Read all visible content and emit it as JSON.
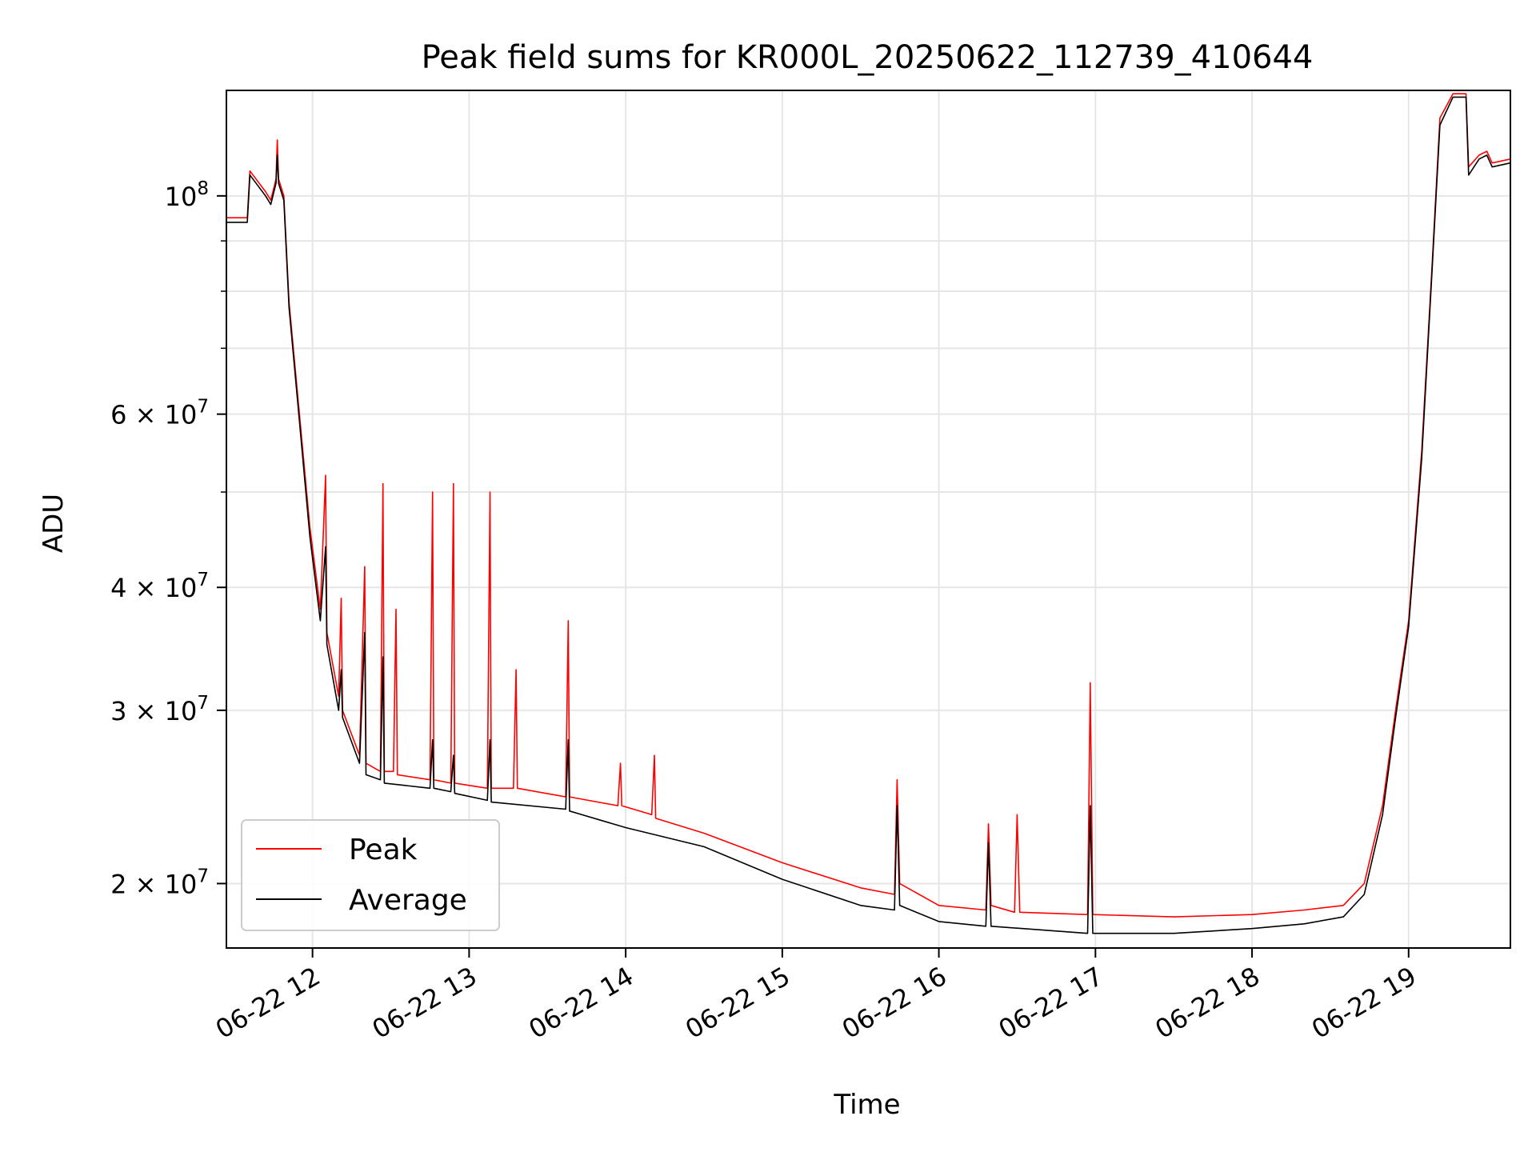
{
  "chart_data": {
    "type": "line",
    "title": "Peak field sums for KR000L_20250622_112739_410644",
    "xlabel": "Time",
    "ylabel": "ADU",
    "y_scale": "log",
    "ylim": [
      17200000,
      128000000
    ],
    "xlim": [
      "2025-06-22 11:27",
      "2025-06-22 19:39"
    ],
    "x_ticks": [
      {
        "t": "2025-06-22 12:00",
        "label": "06-22 12"
      },
      {
        "t": "2025-06-22 13:00",
        "label": "06-22 13"
      },
      {
        "t": "2025-06-22 14:00",
        "label": "06-22 14"
      },
      {
        "t": "2025-06-22 15:00",
        "label": "06-22 15"
      },
      {
        "t": "2025-06-22 16:00",
        "label": "06-22 16"
      },
      {
        "t": "2025-06-22 17:00",
        "label": "06-22 17"
      },
      {
        "t": "2025-06-22 18:00",
        "label": "06-22 18"
      },
      {
        "t": "2025-06-22 19:00",
        "label": "06-22 19"
      }
    ],
    "y_ticks": [
      {
        "v": 20000000,
        "base": "2 × 10",
        "exp": "7"
      },
      {
        "v": 30000000,
        "base": "3 × 10",
        "exp": "7"
      },
      {
        "v": 40000000,
        "base": "4 × 10",
        "exp": "7"
      },
      {
        "v": 60000000,
        "base": "6 × 10",
        "exp": "7"
      },
      {
        "v": 100000000,
        "base": "10",
        "exp": "8"
      }
    ],
    "y_minor_ticks": [
      50000000,
      70000000,
      80000000,
      90000000
    ],
    "grid": true,
    "legend_position": "lower-left",
    "series": [
      {
        "name": "Peak",
        "color": "#ff0000",
        "points": [
          [
            "2025-06-22 11:27",
            95000000
          ],
          [
            "2025-06-22 11:35",
            95000000
          ],
          [
            "2025-06-22 11:36",
            106000000
          ],
          [
            "2025-06-22 11:42",
            101000000
          ],
          [
            "2025-06-22 11:44",
            99000000
          ],
          [
            "2025-06-22 11:46",
            104000000
          ],
          [
            "2025-06-22 11:46.5",
            114000000
          ],
          [
            "2025-06-22 11:47",
            104000000
          ],
          [
            "2025-06-22 11:49",
            100000000
          ],
          [
            "2025-06-22 11:51",
            78000000
          ],
          [
            "2025-06-22 11:55",
            60000000
          ],
          [
            "2025-06-22 11:59",
            46000000
          ],
          [
            "2025-06-22 12:03",
            38000000
          ],
          [
            "2025-06-22 12:05",
            52000000
          ],
          [
            "2025-06-22 12:05.5",
            36000000
          ],
          [
            "2025-06-22 12:10",
            31000000
          ],
          [
            "2025-06-22 12:11",
            39000000
          ],
          [
            "2025-06-22 12:11.5",
            30000000
          ],
          [
            "2025-06-22 12:18",
            27000000
          ],
          [
            "2025-06-22 12:20",
            42000000
          ],
          [
            "2025-06-22 12:20.5",
            26500000
          ],
          [
            "2025-06-22 12:26",
            26000000
          ],
          [
            "2025-06-22 12:27",
            51000000
          ],
          [
            "2025-06-22 12:27.5",
            26000000
          ],
          [
            "2025-06-22 12:31",
            26000000
          ],
          [
            "2025-06-22 12:32",
            38000000
          ],
          [
            "2025-06-22 12:32.5",
            25800000
          ],
          [
            "2025-06-22 12:45",
            25500000
          ],
          [
            "2025-06-22 12:46",
            50000000
          ],
          [
            "2025-06-22 12:46.5",
            25500000
          ],
          [
            "2025-06-22 12:53",
            25300000
          ],
          [
            "2025-06-22 12:54",
            51000000
          ],
          [
            "2025-06-22 12:54.5",
            25300000
          ],
          [
            "2025-06-22 13:07",
            25000000
          ],
          [
            "2025-06-22 13:08",
            50000000
          ],
          [
            "2025-06-22 13:08.5",
            25000000
          ],
          [
            "2025-06-22 13:17",
            25000000
          ],
          [
            "2025-06-22 13:18",
            33000000
          ],
          [
            "2025-06-22 13:18.5",
            25000000
          ],
          [
            "2025-06-22 13:37",
            24500000
          ],
          [
            "2025-06-22 13:38",
            37000000
          ],
          [
            "2025-06-22 13:38.5",
            24500000
          ],
          [
            "2025-06-22 13:57",
            24000000
          ],
          [
            "2025-06-22 13:58",
            26500000
          ],
          [
            "2025-06-22 13:58.5",
            24000000
          ],
          [
            "2025-06-22 14:10",
            23500000
          ],
          [
            "2025-06-22 14:11",
            27000000
          ],
          [
            "2025-06-22 14:11.5",
            23300000
          ],
          [
            "2025-06-22 14:30",
            22500000
          ],
          [
            "2025-06-22 15:00",
            21000000
          ],
          [
            "2025-06-22 15:30",
            19800000
          ],
          [
            "2025-06-22 15:43",
            19500000
          ],
          [
            "2025-06-22 15:44",
            25500000
          ],
          [
            "2025-06-22 15:45",
            20000000
          ],
          [
            "2025-06-22 16:00",
            19000000
          ],
          [
            "2025-06-22 16:18",
            18800000
          ],
          [
            "2025-06-22 16:19",
            23000000
          ],
          [
            "2025-06-22 16:20",
            19000000
          ],
          [
            "2025-06-22 16:29",
            18700000
          ],
          [
            "2025-06-22 16:30",
            23500000
          ],
          [
            "2025-06-22 16:31",
            18700000
          ],
          [
            "2025-06-22 16:57",
            18600000
          ],
          [
            "2025-06-22 16:58",
            32000000
          ],
          [
            "2025-06-22 16:59",
            18600000
          ],
          [
            "2025-06-22 17:30",
            18500000
          ],
          [
            "2025-06-22 18:00",
            18600000
          ],
          [
            "2025-06-22 18:20",
            18800000
          ],
          [
            "2025-06-22 18:35",
            19000000
          ],
          [
            "2025-06-22 18:43",
            20000000
          ],
          [
            "2025-06-22 18:50",
            24000000
          ],
          [
            "2025-06-22 18:55",
            30000000
          ],
          [
            "2025-06-22 19:00",
            37000000
          ],
          [
            "2025-06-22 19:05",
            55000000
          ],
          [
            "2025-06-22 19:09",
            85000000
          ],
          [
            "2025-06-22 19:12",
            120000000
          ],
          [
            "2025-06-22 19:17",
            127000000
          ],
          [
            "2025-06-22 19:22",
            127000000
          ],
          [
            "2025-06-22 19:23",
            107000000
          ],
          [
            "2025-06-22 19:27",
            110000000
          ],
          [
            "2025-06-22 19:30",
            111000000
          ],
          [
            "2025-06-22 19:32",
            108000000
          ],
          [
            "2025-06-22 19:39",
            109000000
          ]
        ]
      },
      {
        "name": "Average",
        "color": "#000000",
        "points": [
          [
            "2025-06-22 11:27",
            94000000
          ],
          [
            "2025-06-22 11:35",
            94000000
          ],
          [
            "2025-06-22 11:36",
            105000000
          ],
          [
            "2025-06-22 11:42",
            100000000
          ],
          [
            "2025-06-22 11:44",
            98000000
          ],
          [
            "2025-06-22 11:46",
            103000000
          ],
          [
            "2025-06-22 11:46.5",
            110000000
          ],
          [
            "2025-06-22 11:47",
            103000000
          ],
          [
            "2025-06-22 11:49",
            99000000
          ],
          [
            "2025-06-22 11:51",
            77000000
          ],
          [
            "2025-06-22 11:55",
            59000000
          ],
          [
            "2025-06-22 11:59",
            45000000
          ],
          [
            "2025-06-22 12:03",
            37000000
          ],
          [
            "2025-06-22 12:05",
            44000000
          ],
          [
            "2025-06-22 12:05.5",
            35000000
          ],
          [
            "2025-06-22 12:10",
            30000000
          ],
          [
            "2025-06-22 12:11",
            33000000
          ],
          [
            "2025-06-22 12:11.5",
            29500000
          ],
          [
            "2025-06-22 12:18",
            26500000
          ],
          [
            "2025-06-22 12:20",
            36000000
          ],
          [
            "2025-06-22 12:20.5",
            25800000
          ],
          [
            "2025-06-22 12:26",
            25500000
          ],
          [
            "2025-06-22 12:27",
            34000000
          ],
          [
            "2025-06-22 12:27.5",
            25300000
          ],
          [
            "2025-06-22 12:45",
            25000000
          ],
          [
            "2025-06-22 12:46",
            28000000
          ],
          [
            "2025-06-22 12:46.5",
            25000000
          ],
          [
            "2025-06-22 12:53",
            24800000
          ],
          [
            "2025-06-22 12:54",
            27000000
          ],
          [
            "2025-06-22 12:54.5",
            24700000
          ],
          [
            "2025-06-22 13:07",
            24300000
          ],
          [
            "2025-06-22 13:08",
            28000000
          ],
          [
            "2025-06-22 13:08.5",
            24200000
          ],
          [
            "2025-06-22 13:37",
            23800000
          ],
          [
            "2025-06-22 13:38",
            28000000
          ],
          [
            "2025-06-22 13:38.5",
            23700000
          ],
          [
            "2025-06-22 14:00",
            22800000
          ],
          [
            "2025-06-22 14:30",
            21800000
          ],
          [
            "2025-06-22 15:00",
            20200000
          ],
          [
            "2025-06-22 15:30",
            19000000
          ],
          [
            "2025-06-22 15:43",
            18800000
          ],
          [
            "2025-06-22 15:44",
            24000000
          ],
          [
            "2025-06-22 15:45",
            19000000
          ],
          [
            "2025-06-22 16:00",
            18300000
          ],
          [
            "2025-06-22 16:18",
            18100000
          ],
          [
            "2025-06-22 16:19",
            22000000
          ],
          [
            "2025-06-22 16:20",
            18100000
          ],
          [
            "2025-06-22 16:57",
            17800000
          ],
          [
            "2025-06-22 16:58",
            24000000
          ],
          [
            "2025-06-22 16:59",
            17800000
          ],
          [
            "2025-06-22 17:30",
            17800000
          ],
          [
            "2025-06-22 18:00",
            18000000
          ],
          [
            "2025-06-22 18:20",
            18200000
          ],
          [
            "2025-06-22 18:35",
            18500000
          ],
          [
            "2025-06-22 18:43",
            19500000
          ],
          [
            "2025-06-22 18:50",
            23500000
          ],
          [
            "2025-06-22 18:55",
            29500000
          ],
          [
            "2025-06-22 19:00",
            36500000
          ],
          [
            "2025-06-22 19:05",
            54000000
          ],
          [
            "2025-06-22 19:09",
            84000000
          ],
          [
            "2025-06-22 19:12",
            118000000
          ],
          [
            "2025-06-22 19:17",
            126000000
          ],
          [
            "2025-06-22 19:22",
            126000000
          ],
          [
            "2025-06-22 19:23",
            105000000
          ],
          [
            "2025-06-22 19:27",
            109000000
          ],
          [
            "2025-06-22 19:30",
            110000000
          ],
          [
            "2025-06-22 19:32",
            107000000
          ],
          [
            "2025-06-22 19:39",
            108000000
          ]
        ]
      }
    ]
  }
}
